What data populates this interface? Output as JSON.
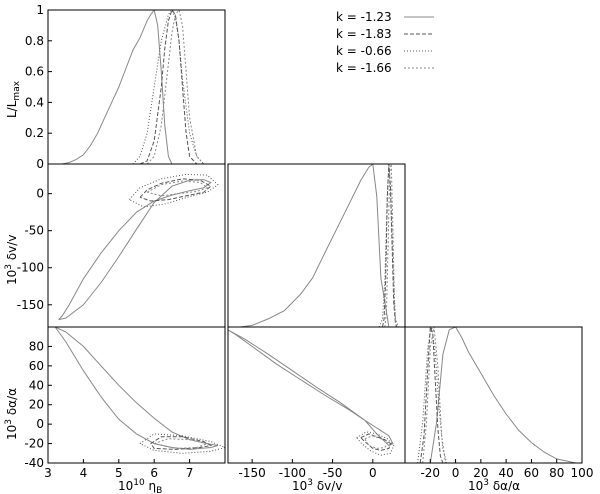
{
  "legend": [
    {
      "label": "k = -1.23",
      "color": "#888888",
      "dash": "solid"
    },
    {
      "label": "k = -1.83",
      "color": "#555555",
      "dash": "4,2"
    },
    {
      "label": "k = -0.66",
      "color": "#555555",
      "dash": "1,2"
    },
    {
      "label": "k = -1.66",
      "color": "#888888",
      "dash": "2,2"
    }
  ],
  "axis_labels": {
    "eta_b": {
      "pre": "10",
      "exp": "10",
      "sym": " η",
      "sub": "B"
    },
    "dv": {
      "pre": "10",
      "exp": "3",
      "sym": " δv/v"
    },
    "da": {
      "pre": "10",
      "exp": "3",
      "sym": " δα/α"
    },
    "L": {
      "main": "L/L",
      "sub": "max"
    }
  },
  "chart_data": [
    {
      "type": "line",
      "panel": "eta_b-likelihood",
      "xlim": [
        3,
        8
      ],
      "ylim": [
        0,
        1
      ],
      "xticks": [],
      "yticks": [
        "0",
        "0.2",
        "0.4",
        "0.6",
        "0.8",
        "1"
      ],
      "ylabel": "L/Lmax",
      "series": [
        {
          "x": [
            3.4,
            3.6,
            3.8,
            4.0,
            4.2,
            4.4,
            4.6,
            4.8,
            5.0,
            5.2,
            5.4,
            5.6,
            5.8,
            5.9,
            6.0,
            6.1,
            6.2,
            6.3,
            6.4,
            6.5
          ],
          "y": [
            0,
            0.01,
            0.03,
            0.06,
            0.12,
            0.2,
            0.3,
            0.4,
            0.5,
            0.62,
            0.74,
            0.82,
            0.93,
            0.97,
            1.0,
            0.9,
            0.6,
            0.25,
            0.05,
            0
          ]
        },
        {
          "x": [
            5.6,
            5.8,
            6.0,
            6.2,
            6.3,
            6.4,
            6.5,
            6.6,
            6.7,
            6.8,
            6.9,
            7.0,
            7.2
          ],
          "y": [
            0,
            0.02,
            0.15,
            0.5,
            0.75,
            0.93,
            1.0,
            0.97,
            0.8,
            0.5,
            0.2,
            0.05,
            0
          ]
        },
        {
          "x": [
            5.4,
            5.6,
            5.8,
            6.0,
            6.2,
            6.4,
            6.5,
            6.6,
            6.7,
            6.8,
            7.0,
            7.2,
            7.4
          ],
          "y": [
            0,
            0.05,
            0.2,
            0.5,
            0.8,
            0.97,
            1.0,
            0.95,
            0.8,
            0.55,
            0.2,
            0.05,
            0
          ]
        },
        {
          "x": [
            5.8,
            6.0,
            6.2,
            6.4,
            6.5,
            6.6,
            6.7,
            6.8,
            6.9,
            7.0,
            7.2,
            7.4
          ],
          "y": [
            0,
            0.05,
            0.25,
            0.65,
            0.85,
            0.97,
            1.0,
            0.9,
            0.6,
            0.3,
            0.05,
            0
          ]
        }
      ]
    },
    {
      "type": "line",
      "panel": "eta_b-vs-dv",
      "xlim": [
        3,
        8
      ],
      "ylim": [
        -180,
        40
      ],
      "xticks": [],
      "yticks": [
        "0",
        "-50",
        "-100",
        "-150"
      ],
      "ylabel": "10^3 δv/v",
      "series": [
        {
          "x": [
            3.3,
            3.5,
            4.0,
            4.5,
            5.0,
            5.5,
            6.0,
            6.5,
            7.0,
            7.4,
            7.6,
            7.4,
            7.0,
            6.5,
            6.0,
            5.5,
            5.0,
            4.5,
            4.0,
            3.6,
            3.4,
            3.3
          ],
          "y": [
            -170,
            -168,
            -150,
            -120,
            -85,
            -48,
            -12,
            10,
            18,
            19,
            15,
            8,
            4,
            -2,
            -10,
            -25,
            -50,
            -80,
            -115,
            -150,
            -165,
            -170
          ]
        },
        {
          "x": [
            5.6,
            5.8,
            6.2,
            6.8,
            7.3,
            7.6,
            7.4,
            7.0,
            6.4,
            5.9,
            5.6
          ],
          "y": [
            -5,
            5,
            14,
            20,
            18,
            10,
            2,
            -2,
            -8,
            -10,
            -5
          ]
        },
        {
          "x": [
            5.3,
            5.6,
            6.2,
            6.9,
            7.5,
            7.8,
            7.5,
            7.0,
            6.3,
            5.7,
            5.3
          ],
          "y": [
            -8,
            8,
            20,
            26,
            25,
            12,
            2,
            -4,
            -14,
            -18,
            -8
          ]
        },
        {
          "x": [
            5.8,
            6.2,
            6.8,
            7.3,
            7.5,
            7.2,
            6.7,
            6.2,
            5.8
          ],
          "y": [
            2,
            12,
            17,
            15,
            8,
            3,
            0,
            -3,
            2
          ]
        }
      ]
    },
    {
      "type": "line",
      "panel": "eta_b-vs-dalpha",
      "xlim": [
        3,
        8
      ],
      "ylim": [
        -40,
        100
      ],
      "xticks": [
        "3",
        "4",
        "5",
        "6",
        "7"
      ],
      "yticks": [
        "-40",
        "-20",
        "0",
        "20",
        "40",
        "60",
        "80"
      ],
      "xlabel": "10^10 ηB",
      "ylabel": "10^3 δα/α",
      "series": [
        {
          "x": [
            3.2,
            3.5,
            4.0,
            4.5,
            5.0,
            5.5,
            6.0,
            6.5,
            7.0,
            7.5,
            7.8,
            7.6,
            7.0,
            6.5,
            6.0,
            5.5,
            5.0,
            4.5,
            4.0,
            3.5,
            3.2
          ],
          "y": [
            100,
            95,
            80,
            60,
            40,
            22,
            6,
            -8,
            -16,
            -20,
            -22,
            -24,
            -26,
            -24,
            -20,
            -10,
            5,
            28,
            55,
            85,
            100
          ]
        },
        {
          "x": [
            5.9,
            6.2,
            6.8,
            7.4,
            7.6,
            7.3,
            6.6,
            6.0,
            5.9
          ],
          "y": [
            -20,
            -13,
            -13,
            -18,
            -22,
            -24,
            -26,
            -25,
            -20
          ]
        },
        {
          "x": [
            5.6,
            6.0,
            6.8,
            7.6,
            8.0,
            7.6,
            6.8,
            6.0,
            5.6
          ],
          "y": [
            -20,
            -10,
            -12,
            -18,
            -24,
            -28,
            -30,
            -27,
            -20
          ]
        },
        {
          "x": [
            6.0,
            6.4,
            7.0,
            7.5,
            7.2,
            6.6,
            6.0
          ],
          "y": [
            -20,
            -15,
            -16,
            -20,
            -24,
            -25,
            -20
          ]
        }
      ]
    },
    {
      "type": "line",
      "panel": "dv-likelihood",
      "xlim": [
        -180,
        40
      ],
      "ylim": [
        0,
        1
      ],
      "xticks": [],
      "yticks": [],
      "series": [
        {
          "x": [
            -165,
            -150,
            -130,
            -110,
            -90,
            -75,
            -60,
            -45,
            -30,
            -15,
            -5,
            0,
            5,
            10,
            20
          ],
          "y": [
            0,
            0.01,
            0.05,
            0.1,
            0.2,
            0.3,
            0.45,
            0.6,
            0.75,
            0.9,
            0.98,
            1.0,
            0.8,
            0.3,
            0
          ]
        },
        {
          "x": [
            12,
            14,
            16,
            18,
            20,
            22,
            24,
            26,
            28,
            30
          ],
          "y": [
            0,
            0.05,
            0.3,
            0.8,
            1.0,
            0.85,
            0.5,
            0.15,
            0.03,
            0
          ]
        },
        {
          "x": [
            8,
            12,
            15,
            18,
            20,
            22,
            25,
            28,
            32
          ],
          "y": [
            0,
            0.05,
            0.3,
            0.8,
            1.0,
            0.85,
            0.4,
            0.05,
            0
          ]
        },
        {
          "x": [
            15,
            17,
            19,
            21,
            23,
            25,
            27,
            29
          ],
          "y": [
            0,
            0.1,
            0.5,
            0.95,
            1.0,
            0.6,
            0.15,
            0
          ]
        }
      ]
    },
    {
      "type": "line",
      "panel": "dv-vs-dalpha",
      "xlim": [
        -180,
        40
      ],
      "ylim": [
        -40,
        100
      ],
      "xticks": [
        "-150",
        "-100",
        "-50",
        "0"
      ],
      "yticks": [],
      "xlabel": "10^3 δv/v",
      "series": [
        {
          "x": [
            -180,
            -170,
            -150,
            -120,
            -90,
            -60,
            -30,
            -10,
            5,
            20,
            25,
            20,
            5,
            -10,
            -40,
            -70,
            -100,
            -130,
            -160,
            -180
          ],
          "y": [
            97,
            92,
            80,
            62,
            46,
            30,
            15,
            4,
            -10,
            -22,
            -20,
            -12,
            -4,
            4,
            22,
            38,
            55,
            72,
            88,
            97
          ]
        },
        {
          "x": [
            -15,
            -5,
            5,
            15,
            22,
            20,
            10,
            0,
            -10,
            -15
          ],
          "y": [
            -14,
            -10,
            -13,
            -16,
            -20,
            -25,
            -27,
            -25,
            -18,
            -14
          ]
        },
        {
          "x": [
            -20,
            -8,
            5,
            18,
            26,
            22,
            10,
            -2,
            -14,
            -20
          ],
          "y": [
            -14,
            -8,
            -10,
            -15,
            -22,
            -30,
            -32,
            -28,
            -20,
            -14
          ]
        },
        {
          "x": [
            -10,
            0,
            10,
            18,
            15,
            5,
            -5,
            -10
          ],
          "y": [
            -15,
            -12,
            -15,
            -19,
            -24,
            -25,
            -22,
            -15
          ]
        }
      ]
    },
    {
      "type": "line",
      "panel": "dalpha-likelihood",
      "xlim": [
        -40,
        100
      ],
      "ylim": [
        0,
        1
      ],
      "xticks": [
        "-20",
        "0",
        "20",
        "40",
        "60",
        "80",
        "100"
      ],
      "yticks": [],
      "xlabel": "10^3 δα/α",
      "series": [
        {
          "x": [
            -20,
            -15,
            -10,
            -5,
            0,
            5,
            10,
            20,
            30,
            40,
            50,
            60,
            70,
            80,
            90,
            95
          ],
          "y": [
            0,
            0.3,
            0.8,
            0.98,
            1.0,
            0.92,
            0.82,
            0.66,
            0.5,
            0.36,
            0.24,
            0.15,
            0.08,
            0.03,
            0.01,
            0
          ]
        },
        {
          "x": [
            -28,
            -25,
            -22,
            -20,
            -18,
            -16,
            -14,
            -12,
            -10
          ],
          "y": [
            0,
            0.2,
            0.7,
            1.0,
            0.95,
            0.6,
            0.25,
            0.05,
            0
          ]
        },
        {
          "x": [
            -30,
            -26,
            -22,
            -19,
            -16,
            -13,
            -10,
            -7
          ],
          "y": [
            0,
            0.3,
            0.85,
            1.0,
            0.8,
            0.4,
            0.1,
            0
          ]
        },
        {
          "x": [
            -26,
            -23,
            -20,
            -17,
            -14,
            -11,
            -8
          ],
          "y": [
            0,
            0.3,
            0.85,
            1.0,
            0.7,
            0.2,
            0
          ]
        }
      ]
    }
  ]
}
